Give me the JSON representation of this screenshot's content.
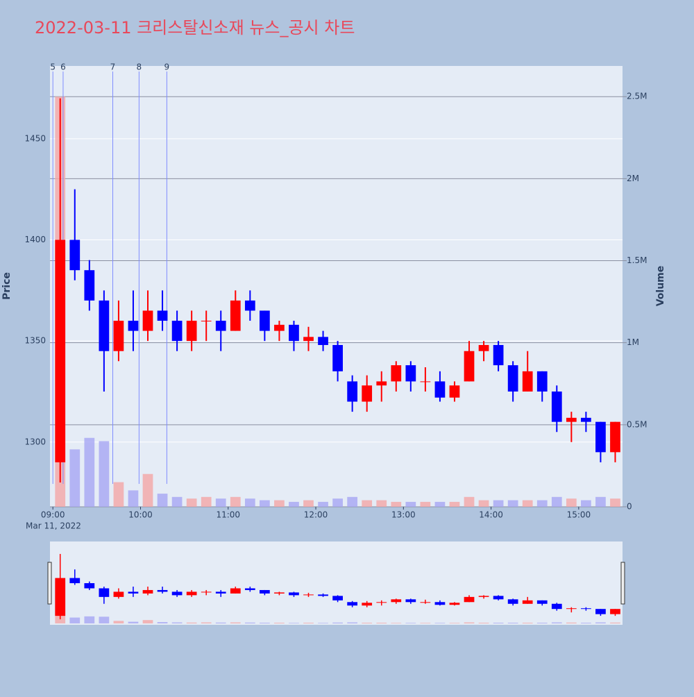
{
  "chart_data": {
    "type": "candlestick",
    "title": "2022-03-11 크리스탈신소재 뉴스_공시 차트",
    "y_label": "Price",
    "y2_label": "Volume",
    "x_date_label": "Mar 11, 2022",
    "increasing_color": "#ff0000",
    "decreasing_color": "#0000ff",
    "volume_increasing_color": "#f4a6a6",
    "volume_decreasing_color": "#a6a6f4",
    "annotation_color": "#7f8cff",
    "x": [
      "2022-03-11 09:00",
      "2022-03-11 09:10",
      "2022-03-11 09:20",
      "2022-03-11 09:30",
      "2022-03-11 09:40",
      "2022-03-11 09:50",
      "2022-03-11 10:00",
      "2022-03-11 10:10",
      "2022-03-11 10:20",
      "2022-03-11 10:30",
      "2022-03-11 10:40",
      "2022-03-11 10:50",
      "2022-03-11 11:00",
      "2022-03-11 11:10",
      "2022-03-11 11:20",
      "2022-03-11 11:30",
      "2022-03-11 11:40",
      "2022-03-11 11:50",
      "2022-03-11 12:00",
      "2022-03-11 12:10",
      "2022-03-11 12:20",
      "2022-03-11 12:30",
      "2022-03-11 12:40",
      "2022-03-11 12:50",
      "2022-03-11 13:00",
      "2022-03-11 13:10",
      "2022-03-11 13:20",
      "2022-03-11 13:30",
      "2022-03-11 13:40",
      "2022-03-11 13:50",
      "2022-03-11 14:00",
      "2022-03-11 14:10",
      "2022-03-11 14:20",
      "2022-03-11 14:30",
      "2022-03-11 14:40",
      "2022-03-11 14:50",
      "2022-03-11 15:00",
      "2022-03-11 15:10",
      "2022-03-11 15:20"
    ],
    "open": [
      1290,
      1400,
      1385,
      1370,
      1345,
      1360,
      1355,
      1365,
      1360,
      1350,
      1360,
      1360,
      1355,
      1370,
      1365,
      1355,
      1358,
      1350,
      1352,
      1348,
      1330,
      1320,
      1328,
      1330,
      1338,
      1330,
      1330,
      1322,
      1330,
      1345,
      1348,
      1338,
      1325,
      1335,
      1325,
      1310,
      1312,
      1310,
      1295
    ],
    "high": [
      1470,
      1425,
      1390,
      1375,
      1370,
      1375,
      1375,
      1375,
      1365,
      1365,
      1365,
      1365,
      1375,
      1375,
      1365,
      1360,
      1360,
      1357,
      1355,
      1350,
      1333,
      1333,
      1335,
      1340,
      1340,
      1337,
      1335,
      1330,
      1350,
      1350,
      1350,
      1340,
      1345,
      1335,
      1328,
      1315,
      1315,
      1310,
      1310
    ],
    "low": [
      1280,
      1380,
      1365,
      1325,
      1340,
      1345,
      1350,
      1355,
      1345,
      1345,
      1350,
      1345,
      1355,
      1360,
      1350,
      1350,
      1345,
      1345,
      1345,
      1330,
      1315,
      1315,
      1320,
      1325,
      1325,
      1325,
      1320,
      1320,
      1330,
      1340,
      1335,
      1320,
      1325,
      1320,
      1305,
      1300,
      1305,
      1290,
      1290
    ],
    "close": [
      1400,
      1385,
      1370,
      1345,
      1360,
      1355,
      1365,
      1360,
      1350,
      1360,
      1360,
      1355,
      1370,
      1365,
      1355,
      1358,
      1350,
      1352,
      1348,
      1335,
      1320,
      1328,
      1330,
      1338,
      1330,
      1330,
      1322,
      1328,
      1345,
      1348,
      1338,
      1325,
      1335,
      1325,
      1310,
      1312,
      1310,
      1295,
      1310
    ],
    "volume": [
      2500000,
      350000,
      420000,
      400000,
      150000,
      100000,
      200000,
      80000,
      60000,
      50000,
      60000,
      50000,
      60000,
      50000,
      40000,
      40000,
      30000,
      40000,
      30000,
      50000,
      60000,
      40000,
      40000,
      30000,
      30000,
      30000,
      30000,
      30000,
      60000,
      40000,
      40000,
      40000,
      40000,
      40000,
      60000,
      50000,
      40000,
      60000,
      50000
    ],
    "xlim": [
      "2022-03-11 08:58",
      "2022-03-11 15:30"
    ],
    "xticks": [
      {
        "value": "2022-03-11 09:00",
        "label": "09:00"
      },
      {
        "value": "2022-03-11 10:00",
        "label": "10:00"
      },
      {
        "value": "2022-03-11 11:00",
        "label": "11:00"
      },
      {
        "value": "2022-03-11 12:00",
        "label": "12:00"
      },
      {
        "value": "2022-03-11 13:00",
        "label": "13:00"
      },
      {
        "value": "2022-03-11 14:00",
        "label": "14:00"
      },
      {
        "value": "2022-03-11 15:00",
        "label": "15:00"
      }
    ],
    "ylim": [
      1268,
      1486
    ],
    "yticks": [
      1300,
      1350,
      1400,
      1450
    ],
    "y2lim": [
      0,
      2687000
    ],
    "y2ticks": [
      0,
      {
        "value": 500000,
        "label": "0.5M"
      },
      {
        "value": 1000000,
        "label": "1M"
      },
      {
        "value": 1500000,
        "label": "1.5M"
      },
      {
        "value": 2000000,
        "label": "2M"
      },
      {
        "value": 2500000,
        "label": "2.5M"
      }
    ],
    "annotations": [
      {
        "label": "5",
        "x": "2022-03-11 09:00"
      },
      {
        "label": "6",
        "x": "2022-03-11 09:07"
      },
      {
        "label": "7",
        "x": "2022-03-11 09:41"
      },
      {
        "label": "8",
        "x": "2022-03-11 09:59"
      },
      {
        "label": "9",
        "x": "2022-03-11 10:18"
      }
    ],
    "grid": true
  }
}
